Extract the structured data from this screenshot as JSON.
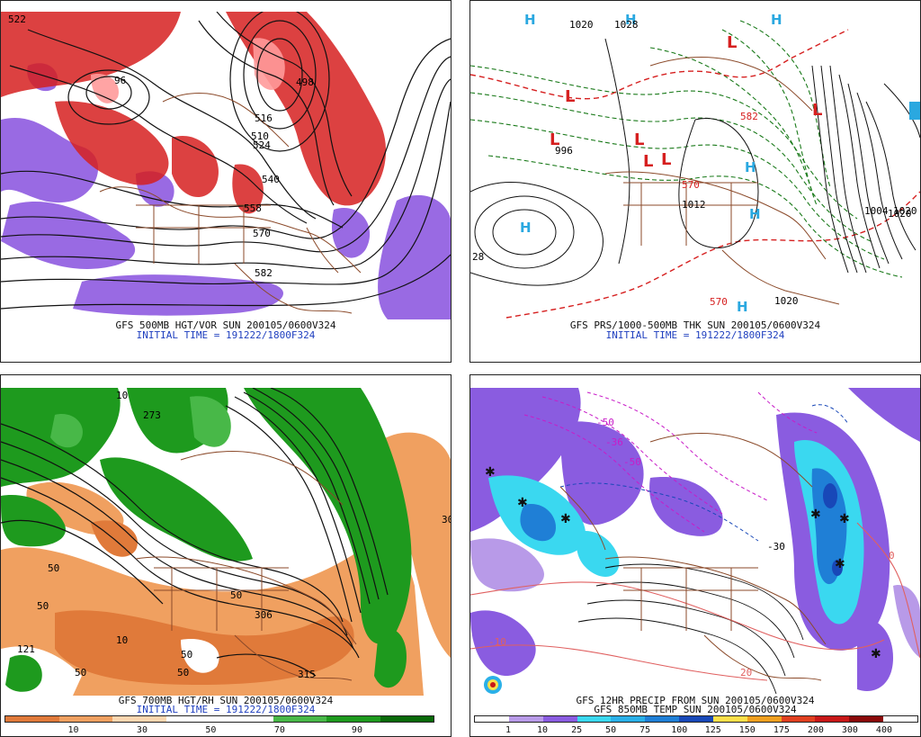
{
  "panels": [
    {
      "id": "p1",
      "title": "GFS 500MB HGT/VOR SUN 200105/0600V324",
      "subtitle": "INITIAL TIME = 191222/1800F324",
      "contour_labels": [
        "522",
        "96",
        "498",
        "516",
        "510",
        "524",
        "540",
        "558",
        "570",
        "582"
      ]
    },
    {
      "id": "p2",
      "title": "GFS PRS/1000-500MB THK SUN 200105/0600V324",
      "subtitle": "INITIAL TIME = 191222/1800F324",
      "contour_labels": [
        "1020",
        "1028",
        "28",
        "996",
        "1012",
        "1020",
        "1020",
        "570",
        "570",
        "1004",
        "1020",
        "582"
      ],
      "pressure_centers": [
        "L",
        "L",
        "L",
        "L",
        "L",
        "L",
        "L",
        "H",
        "H",
        "H",
        "H",
        "H",
        "H",
        "H"
      ]
    },
    {
      "id": "p3",
      "title": "GFS 700MB HGT/RH SUN 200105/0600V324",
      "subtitle": "INITIAL TIME = 191222/1800F324",
      "contour_labels": [
        "273",
        "10",
        "50",
        "50",
        "50",
        "121",
        "10",
        "50",
        "50",
        "315",
        "30",
        "306",
        "50"
      ],
      "colorbar": {
        "colors": [
          "#e07a3a",
          "#f0a060",
          "#fcd6b0",
          "#ffffff",
          "#ffffff",
          "#48b848",
          "#1e9a1e",
          "#0a6a0a"
        ],
        "ticks": [
          "10",
          "30",
          "50",
          "70",
          "90"
        ]
      }
    },
    {
      "id": "p4",
      "title": "GFS 12HR PRECIP FROM SUN 200105/0600V324",
      "subtitle": "GFS 850MB TEMP SUN 200105/0600V324",
      "contour_labels": [
        "-50",
        "-36",
        "-50",
        "-30",
        "-10",
        "0",
        "20"
      ],
      "colorbar": {
        "colors": [
          "#ffffff",
          "#b89ae8",
          "#8a5ce0",
          "#3ad8f0",
          "#2ab0e8",
          "#1f7fd6",
          "#1848b8",
          "#fde04a",
          "#f0a020",
          "#e04020",
          "#c81818",
          "#8a0a0a",
          "#ffffff"
        ],
        "ticks": [
          "1",
          "10",
          "25",
          "50",
          "75",
          "100",
          "125",
          "150",
          "175",
          "200",
          "300",
          "400"
        ]
      }
    }
  ]
}
